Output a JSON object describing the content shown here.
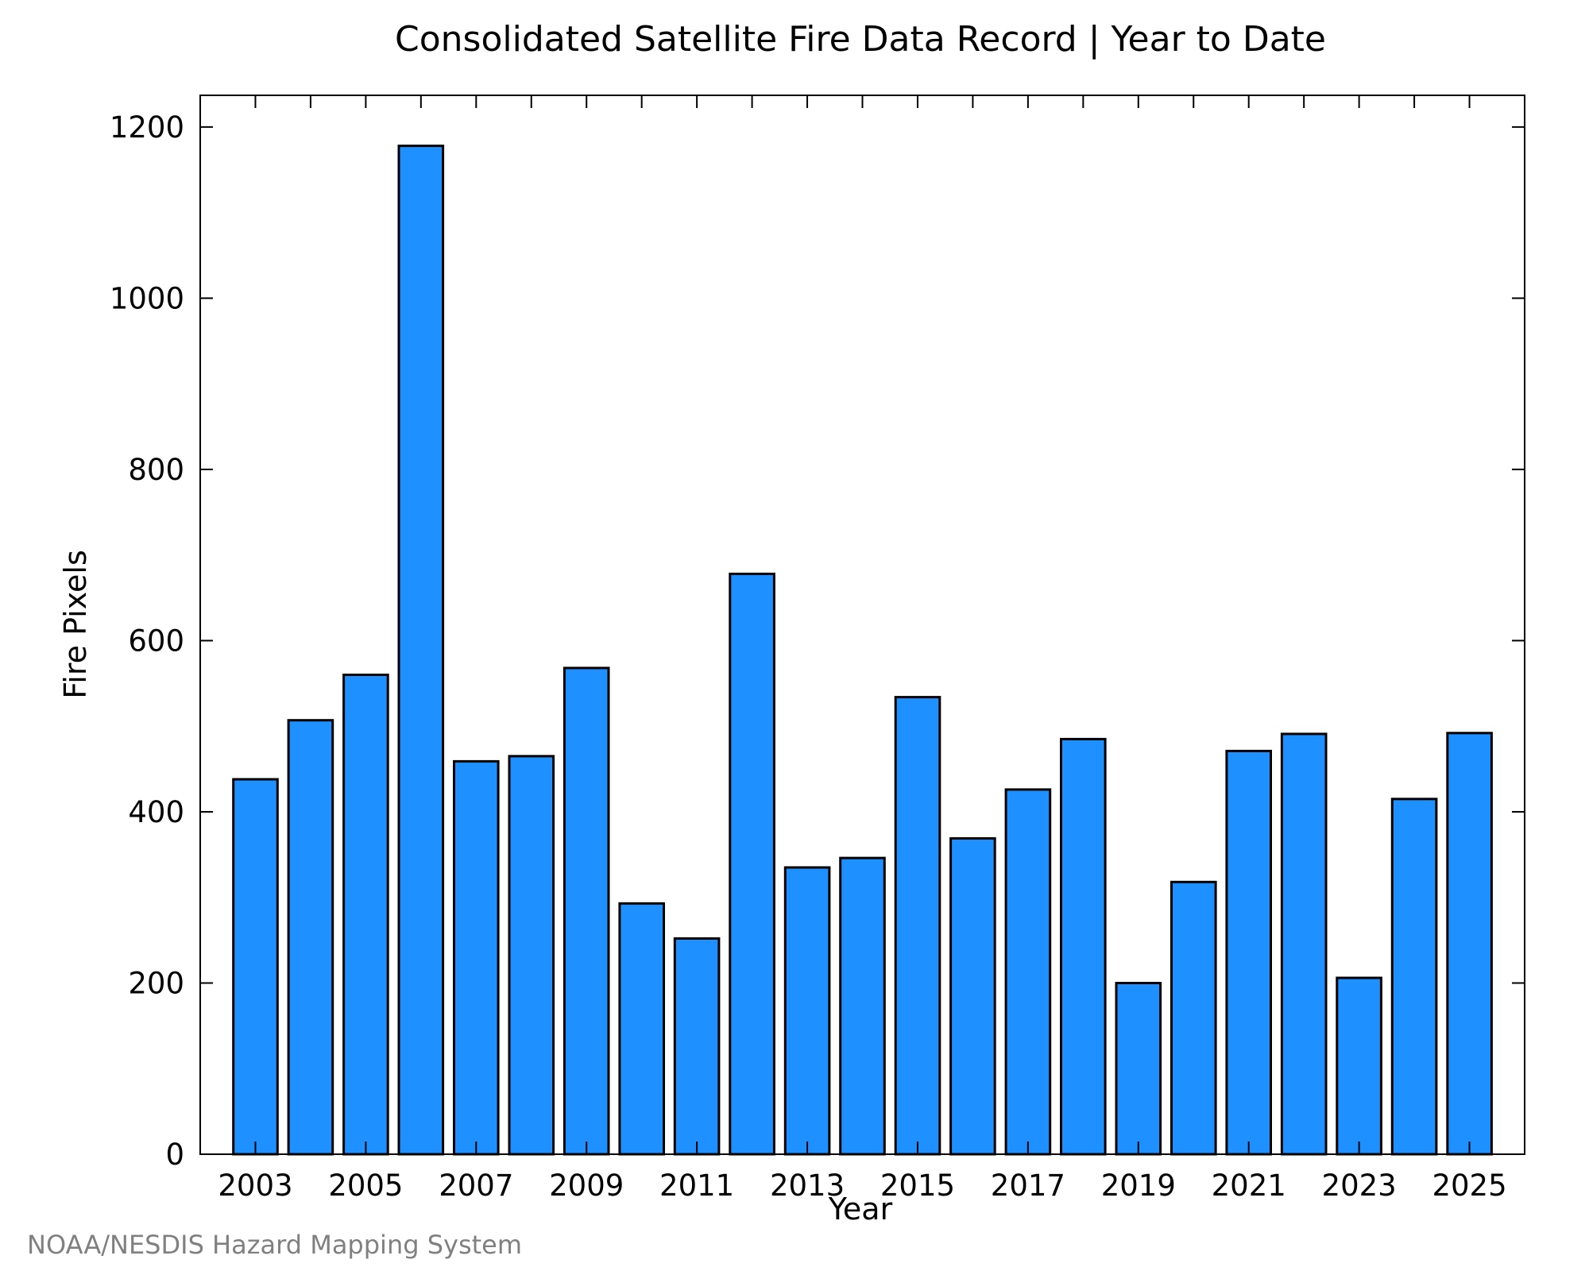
{
  "chart_data": {
    "type": "bar",
    "title": "Consolidated Satellite Fire Data Record | Year to Date",
    "xlabel": "Year",
    "ylabel": "Fire Pixels",
    "categories": [
      "2003",
      "2004",
      "2005",
      "2006",
      "2007",
      "2008",
      "2009",
      "2010",
      "2011",
      "2012",
      "2013",
      "2014",
      "2015",
      "2016",
      "2017",
      "2018",
      "2019",
      "2020",
      "2021",
      "2022",
      "2023",
      "2024",
      "2025"
    ],
    "values": [
      438,
      507,
      560,
      1178,
      459,
      465,
      568,
      293,
      252,
      678,
      335,
      346,
      534,
      369,
      426,
      485,
      200,
      318,
      471,
      491,
      206,
      415,
      492
    ],
    "x_tick_labels": [
      "2003",
      "2005",
      "2007",
      "2009",
      "2011",
      "2013",
      "2015",
      "2017",
      "2019",
      "2021",
      "2023",
      "2025"
    ],
    "y_ticks": [
      0,
      200,
      400,
      600,
      800,
      1000,
      1200
    ],
    "ylim": [
      0,
      1237
    ],
    "grid": false,
    "bar_color": "#1e90ff"
  },
  "credit": "NOAA/NESDIS Hazard Mapping System"
}
